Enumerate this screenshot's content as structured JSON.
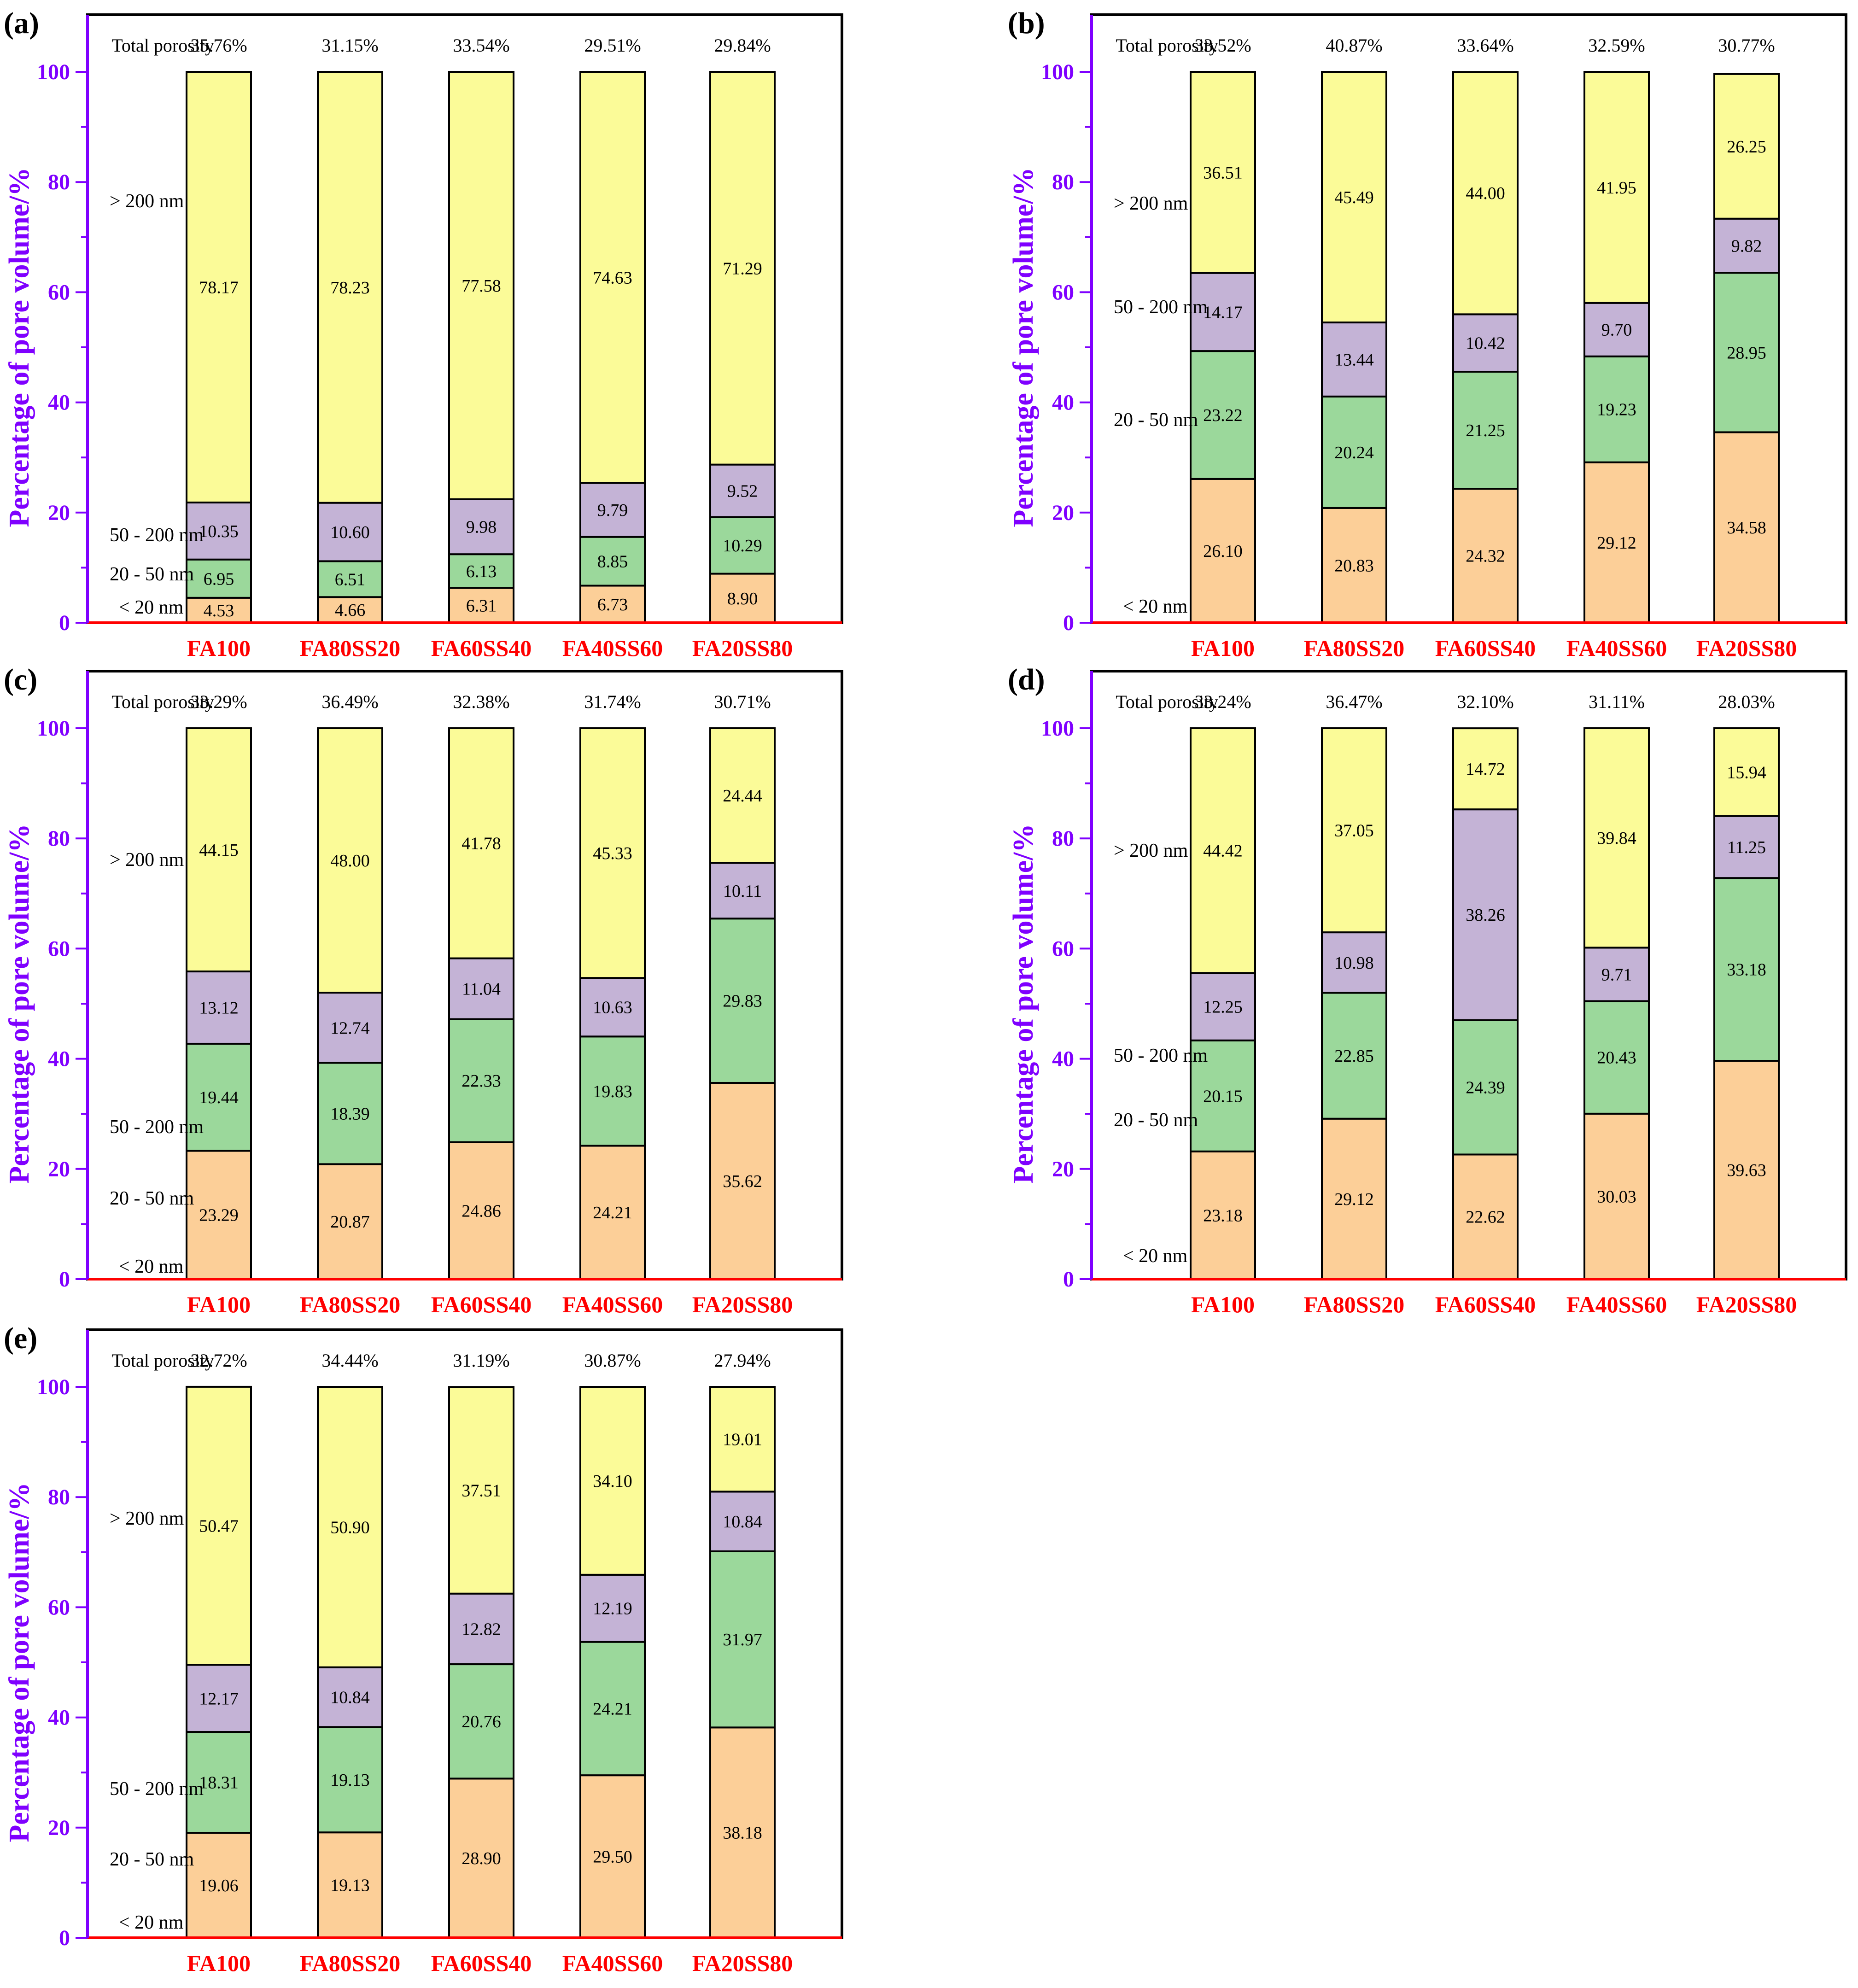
{
  "figure": {
    "ylabel": "Percentage of pore volume/%",
    "total_label": "Total porosity",
    "legend": [
      {
        "key": "lt20",
        "label": "< 20 nm",
        "color": "#fccf98"
      },
      {
        "key": "p20_50",
        "label": "20 - 50 nm",
        "color": "#9bd89b"
      },
      {
        "key": "p50_200",
        "label": "50 - 200 nm",
        "color": "#c4b3d6"
      },
      {
        "key": "gt200",
        "label": "> 200 nm",
        "color": "#fbfb98"
      }
    ]
  },
  "chart_data": [
    {
      "type": "bar",
      "stacked": true,
      "panel": "(a)",
      "ylabel": "Percentage of pore volume/%",
      "ylim": [
        0,
        100
      ],
      "yticks": [
        "0",
        "20",
        "40",
        "60",
        "80",
        "100"
      ],
      "categories": [
        "FA100",
        "FA80SS20",
        "FA60SS40",
        "FA40SS60",
        "FA20SS80"
      ],
      "total_porosity": [
        "35.76%",
        "31.15%",
        "33.54%",
        "29.51%",
        "29.84%"
      ],
      "series": [
        {
          "name": "< 20 nm",
          "values": [
            4.53,
            4.66,
            6.31,
            6.73,
            8.9
          ],
          "labels": [
            "4.53",
            "4.66",
            "6.31",
            "6.73",
            "8.90"
          ]
        },
        {
          "name": "20 - 50 nm",
          "values": [
            6.95,
            6.51,
            6.13,
            8.85,
            10.29
          ],
          "labels": [
            "6.95",
            "6.51",
            "6.13",
            "8.85",
            "10.29"
          ]
        },
        {
          "name": "50 - 200 nm",
          "values": [
            10.35,
            10.6,
            9.98,
            9.79,
            9.52
          ],
          "labels": [
            "10.35",
            "10.60",
            "9.98",
            "9.79",
            "9.52"
          ]
        },
        {
          "name": "> 200 nm",
          "values": [
            78.17,
            78.23,
            77.58,
            74.63,
            71.29
          ],
          "labels": [
            "78.17",
            "78.23",
            "77.58",
            "74.63",
            "71.29"
          ]
        }
      ]
    },
    {
      "type": "bar",
      "stacked": true,
      "panel": "(b)",
      "ylabel": "Percentage of pore volume/%",
      "ylim": [
        0,
        100
      ],
      "yticks": [
        "0",
        "20",
        "40",
        "60",
        "80",
        "100"
      ],
      "categories": [
        "FA100",
        "FA80SS20",
        "FA60SS40",
        "FA40SS60",
        "FA20SS80"
      ],
      "total_porosity": [
        "33.52%",
        "40.87%",
        "33.64%",
        "32.59%",
        "30.77%"
      ],
      "series": [
        {
          "name": "< 20 nm",
          "values": [
            26.1,
            20.83,
            24.32,
            29.12,
            34.58
          ],
          "labels": [
            "26.10",
            "20.83",
            "24.32",
            "29.12",
            "34.58"
          ]
        },
        {
          "name": "20 - 50 nm",
          "values": [
            23.22,
            20.24,
            21.25,
            19.23,
            28.95
          ],
          "labels": [
            "23.22",
            "20.24",
            "21.25",
            "19.23",
            "28.95"
          ]
        },
        {
          "name": "50 - 200 nm",
          "values": [
            14.17,
            13.44,
            10.42,
            9.7,
            9.82
          ],
          "labels": [
            "14.17",
            "13.44",
            "10.42",
            "9.70",
            "9.82"
          ]
        },
        {
          "name": "> 200 nm",
          "values": [
            36.51,
            45.49,
            44.0,
            41.95,
            26.25
          ],
          "labels": [
            "36.51",
            "45.49",
            "44.00",
            "41.95",
            "26.25"
          ]
        }
      ]
    },
    {
      "type": "bar",
      "stacked": true,
      "panel": "(c)",
      "ylabel": "Percentage of pore volume/%",
      "ylim": [
        0,
        100
      ],
      "yticks": [
        "0",
        "20",
        "40",
        "60",
        "80",
        "100"
      ],
      "categories": [
        "FA100",
        "FA80SS20",
        "FA60SS40",
        "FA40SS60",
        "FA20SS80"
      ],
      "total_porosity": [
        "33.29%",
        "36.49%",
        "32.38%",
        "31.74%",
        "30.71%"
      ],
      "series": [
        {
          "name": "< 20 nm",
          "values": [
            23.29,
            20.87,
            24.86,
            24.21,
            35.62
          ],
          "labels": [
            "23.29",
            "20.87",
            "24.86",
            "24.21",
            "35.62"
          ]
        },
        {
          "name": "20 - 50 nm",
          "values": [
            19.44,
            18.39,
            22.33,
            19.83,
            29.83
          ],
          "labels": [
            "19.44",
            "18.39",
            "22.33",
            "19.83",
            "29.83"
          ]
        },
        {
          "name": "50 - 200 nm",
          "values": [
            13.12,
            12.74,
            11.04,
            10.63,
            10.11
          ],
          "labels": [
            "13.12",
            "12.74",
            "11.04",
            "10.63",
            "10.11"
          ]
        },
        {
          "name": "> 200 nm",
          "values": [
            44.15,
            48.0,
            41.78,
            45.33,
            24.44
          ],
          "labels": [
            "44.15",
            "48.00",
            "41.78",
            "45.33",
            "24.44"
          ]
        }
      ]
    },
    {
      "type": "bar",
      "stacked": true,
      "panel": "(d)",
      "ylabel": "Percentage of pore volume/%",
      "ylim": [
        0,
        100
      ],
      "yticks": [
        "0",
        "20",
        "40",
        "60",
        "80",
        "100"
      ],
      "categories": [
        "FA100",
        "FA80SS20",
        "FA60SS40",
        "FA40SS60",
        "FA20SS80"
      ],
      "total_porosity": [
        "33.24%",
        "36.47%",
        "32.10%",
        "31.11%",
        "28.03%"
      ],
      "series": [
        {
          "name": "< 20 nm",
          "values": [
            23.18,
            29.12,
            22.62,
            30.03,
            39.63
          ],
          "labels": [
            "23.18",
            "29.12",
            "22.62",
            "30.03",
            "39.63"
          ]
        },
        {
          "name": "20 - 50 nm",
          "values": [
            20.15,
            22.85,
            24.39,
            20.43,
            33.18
          ],
          "labels": [
            "20.15",
            "22.85",
            "24.39",
            "20.43",
            "33.18"
          ]
        },
        {
          "name": "50 - 200 nm",
          "values": [
            12.25,
            10.98,
            38.26,
            9.71,
            11.25
          ],
          "labels": [
            "12.25",
            "10.98",
            "38.26",
            "9.71",
            "11.25"
          ]
        },
        {
          "name": "> 200 nm",
          "values": [
            44.42,
            37.05,
            14.72,
            39.84,
            15.94
          ],
          "labels": [
            "44.42",
            "37.05",
            "14.72",
            "39.84",
            "15.94"
          ]
        }
      ]
    },
    {
      "type": "bar",
      "stacked": true,
      "panel": "(e)",
      "ylabel": "Percentage of pore volume/%",
      "ylim": [
        0,
        100
      ],
      "yticks": [
        "0",
        "20",
        "40",
        "60",
        "80",
        "100"
      ],
      "categories": [
        "FA100",
        "FA80SS20",
        "FA60SS40",
        "FA40SS60",
        "FA20SS80"
      ],
      "total_porosity": [
        "32.72%",
        "34.44%",
        "31.19%",
        "30.87%",
        "27.94%"
      ],
      "series": [
        {
          "name": "< 20 nm",
          "values": [
            19.06,
            19.13,
            28.9,
            29.5,
            38.18
          ],
          "labels": [
            "19.06",
            "19.13",
            "28.90",
            "29.50",
            "38.18"
          ]
        },
        {
          "name": "20 - 50 nm",
          "values": [
            18.31,
            19.13,
            20.76,
            24.21,
            31.97
          ],
          "labels": [
            "18.31",
            "19.13",
            "20.76",
            "24.21",
            "31.97"
          ]
        },
        {
          "name": "50 - 200 nm",
          "values": [
            12.17,
            10.84,
            12.82,
            12.19,
            10.84
          ],
          "labels": [
            "12.17",
            "10.84",
            "12.82",
            "12.19",
            "10.84"
          ]
        },
        {
          "name": "> 200 nm",
          "values": [
            50.47,
            50.9,
            37.51,
            34.1,
            19.01
          ],
          "labels": [
            "50.47",
            "50.90",
            "37.51",
            "34.10",
            "19.01"
          ]
        }
      ]
    }
  ]
}
